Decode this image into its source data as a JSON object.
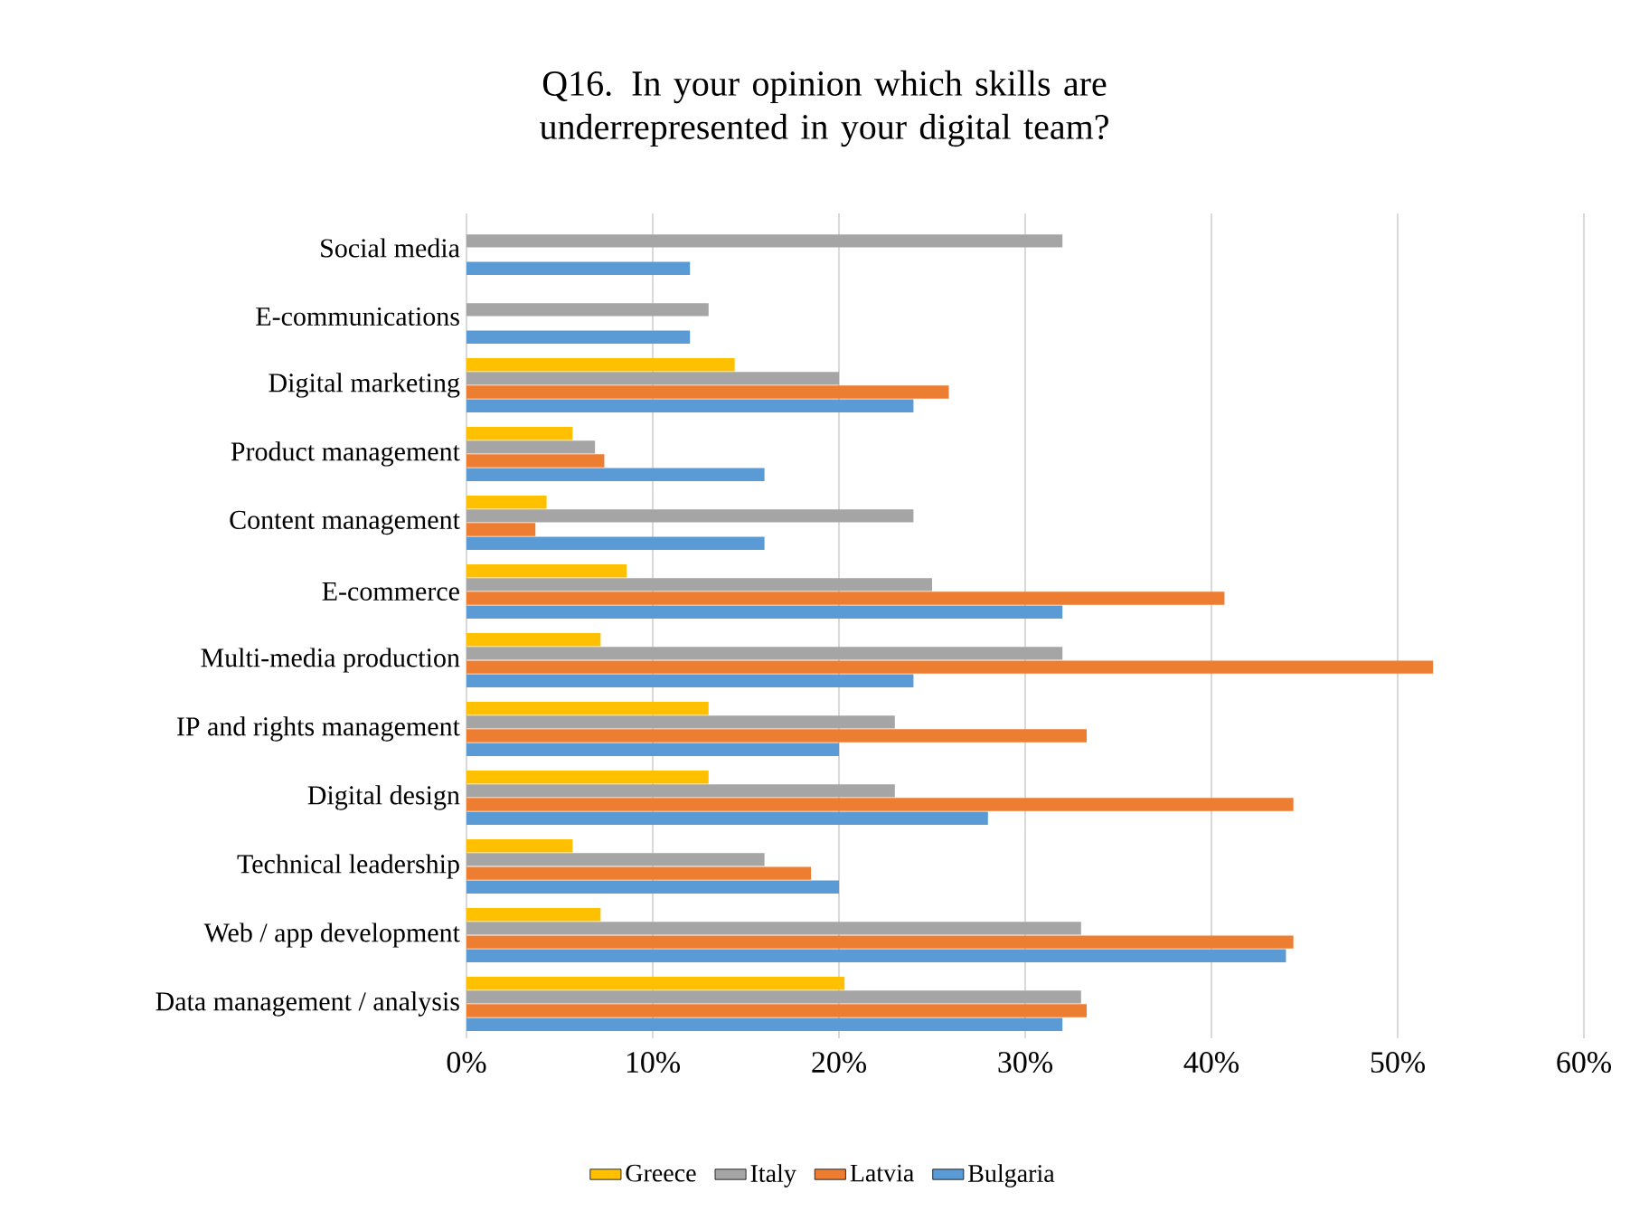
{
  "chart_data": {
    "type": "bar",
    "orientation": "horizontal",
    "title": "Q16. In your opinion which skills are underrepresented in your digital team?",
    "categories": [
      "Social media",
      "E-communications",
      "Digital marketing",
      "Product management",
      "Content management",
      "E-commerce",
      "Multi-media production",
      "IP and rights management",
      "Digital design",
      "Technical leadership",
      "Web / app development",
      "Data management / analysis"
    ],
    "series": [
      {
        "name": "Greece",
        "color": "#ffc000",
        "values": [
          null,
          null,
          14.4,
          5.7,
          4.3,
          8.6,
          7.2,
          13,
          13,
          5.7,
          7.2,
          20.3
        ]
      },
      {
        "name": "Italy",
        "color": "#a5a5a5",
        "values": [
          32,
          13,
          20,
          6.9,
          24,
          25,
          32,
          23,
          23,
          16,
          33,
          33
        ]
      },
      {
        "name": "Latvia",
        "color": "#ed7d31",
        "values": [
          null,
          null,
          25.9,
          7.4,
          3.7,
          40.7,
          51.9,
          33.3,
          44.4,
          18.5,
          44.4,
          33.3
        ]
      },
      {
        "name": "Bulgaria",
        "color": "#5b9bd5",
        "values": [
          12,
          12,
          24,
          16,
          16,
          32,
          24,
          20,
          28,
          20,
          44,
          32
        ]
      }
    ],
    "xlim": [
      0,
      60
    ],
    "xticks": [
      {
        "value": 0,
        "label": "0%"
      },
      {
        "value": 10,
        "label": "10%"
      },
      {
        "value": 20,
        "label": "20%"
      },
      {
        "value": 30,
        "label": "30%"
      },
      {
        "value": 40,
        "label": "40%"
      },
      {
        "value": 50,
        "label": "50%"
      },
      {
        "value": 60,
        "label": "60%"
      }
    ],
    "grid": "x",
    "legend": "bottom"
  }
}
